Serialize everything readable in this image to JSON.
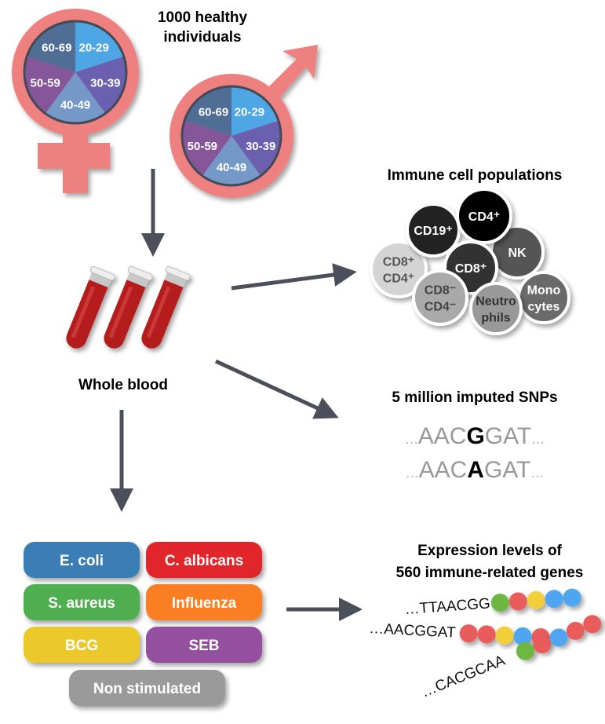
{
  "title": [
    "1000 healthy",
    "individuals"
  ],
  "age_groups": [
    "20-29",
    "30-39",
    "40-49",
    "50-59",
    "60-69"
  ],
  "age_colors": [
    "#4ea6e4",
    "#6b5fb0",
    "#7499c9",
    "#85579a",
    "#506d96"
  ],
  "symbol_color": "#ee8080",
  "sample_label": "Whole blood",
  "immune": {
    "title": "Immune cell populations",
    "cells": [
      {
        "lines": [
          "CD19⁺"
        ],
        "color": "#222222",
        "text": "#ffffff"
      },
      {
        "lines": [
          "CD4⁺"
        ],
        "color": "#000000",
        "text": "#ffffff"
      },
      {
        "lines": [
          "NK"
        ],
        "color": "#555555",
        "text": "#ffffff"
      },
      {
        "lines": [
          "CD8⁺"
        ],
        "color": "#333333",
        "text": "#ffffff"
      },
      {
        "lines": [
          "CD8⁺",
          "CD4⁺"
        ],
        "color": "#d4d4d4",
        "text": "#555555"
      },
      {
        "lines": [
          "CD8⁻",
          "CD4⁻"
        ],
        "color": "#a9a9a9",
        "text": "#444444"
      },
      {
        "lines": [
          "Neutro",
          "phils"
        ],
        "color": "#999999",
        "text": "#333333"
      },
      {
        "lines": [
          "Mono",
          "cytes"
        ],
        "color": "#6a6a6a",
        "text": "#ffffff"
      }
    ]
  },
  "snps": {
    "title": "5 million imputed SNPs",
    "seq1": {
      "pre": "AAC",
      "snp": "G",
      "post": "GAT"
    },
    "seq2": {
      "pre": "AAC",
      "snp": "A",
      "post": "GAT"
    },
    "dots": "..."
  },
  "stimuli": [
    {
      "label": "E. coli",
      "color": "#3a7db5"
    },
    {
      "label": "C. albicans",
      "color": "#e0252a"
    },
    {
      "label": "S. aureus",
      "color": "#4fae4f"
    },
    {
      "label": "Influenza",
      "color": "#fb7f24"
    },
    {
      "label": "BCG",
      "color": "#ebc92c"
    },
    {
      "label": "SEB",
      "color": "#944f9e"
    },
    {
      "label": "Non stimulated",
      "color": "#9a9a9a"
    }
  ],
  "expression": {
    "title": [
      "Expression levels of",
      "560 immune-related genes"
    ],
    "genes": [
      {
        "seq": "…TTAACGG",
        "beads": [
          "#6cb843",
          "#e85c5c",
          "#f2ce3a",
          "#4ea6ef",
          "#4ea6ef"
        ]
      },
      {
        "seq": "…AACGGAT",
        "beads": [
          "#e85c5c",
          "#e85c5c",
          "#f2ce3a",
          "#4ea6ef",
          "#e85c5c"
        ]
      },
      {
        "seq": "…CACGCAA",
        "beads": [
          "#6cb843",
          "#e85c5c",
          "#4ea6ef",
          "#e85c5c",
          "#e85c5c"
        ]
      }
    ]
  }
}
